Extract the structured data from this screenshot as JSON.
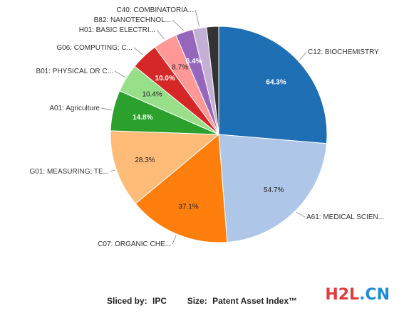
{
  "chart_data": {
    "type": "pie",
    "slices": [
      {
        "label": "C12: BIOCHEMISTRY",
        "value_label": "64.3%",
        "value": 64.3,
        "color": "#1f6fb5",
        "light": true
      },
      {
        "label": "A61: MEDICAL SCIEN...",
        "value_label": "54.7%",
        "value": 54.7,
        "color": "#aec7e8",
        "light": false
      },
      {
        "label": "C07: ORGANIC CHE...",
        "value_label": "37.1%",
        "value": 37.1,
        "color": "#fe7f0e",
        "light": false
      },
      {
        "label": "G01: MEASURING; TE...",
        "value_label": "28.3%",
        "value": 28.3,
        "color": "#ffbb78",
        "light": false
      },
      {
        "label": "A01: Agriculture",
        "value_label": "14.8%",
        "value": 14.8,
        "color": "#2ca02c",
        "light": true
      },
      {
        "label": "B01: PHYSICAL OR C...",
        "value_label": "10.4%",
        "value": 10.4,
        "color": "#98df8a",
        "light": false
      },
      {
        "label": "G06: COMPUTING; C...",
        "value_label": "10.0%",
        "value": 10.0,
        "color": "#d62728",
        "light": true
      },
      {
        "label": "H01: BASIC ELECTRI...",
        "value_label": "8.7%",
        "value": 8.7,
        "color": "#ff9896",
        "light": false
      },
      {
        "label": "B82: NANOTECHNOL...",
        "value_label": "6.4%",
        "value": 6.4,
        "color": "#9467bd",
        "light": true
      },
      {
        "label": "C40: COMBINATORIA...",
        "value_label": "",
        "value": 5.0,
        "color": "#c5b0d5",
        "light": false
      },
      {
        "label": "",
        "value_label": "",
        "value": 4.4,
        "color": "#333333",
        "light": true
      }
    ]
  },
  "footer": {
    "sliced_by_label": "Sliced by:",
    "sliced_by_value": "IPC",
    "size_label": "Size:",
    "size_value": "Patent Asset Index™"
  },
  "watermark": {
    "part1": "H2L",
    "part2": ".CN"
  }
}
